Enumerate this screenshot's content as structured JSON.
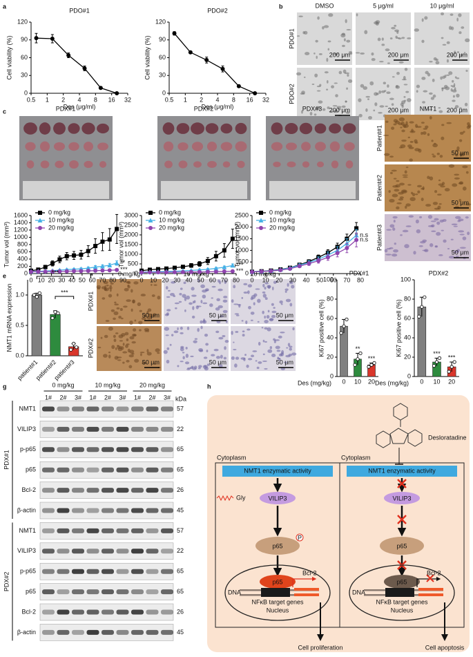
{
  "panel_labels": [
    "a",
    "b",
    "c",
    "d",
    "e",
    "f",
    "g",
    "h"
  ],
  "chart_data": [
    {
      "type": "line",
      "title": "PDO#1",
      "x_label": "Des (μg/ml)",
      "y_label": "Cell viability (%)",
      "xscale": "log",
      "x": [
        0.625,
        1.25,
        2.5,
        5,
        10,
        20
      ],
      "xlim": [
        0.5,
        32
      ],
      "xticks": [
        0.5,
        1,
        2,
        4,
        8,
        16,
        32
      ],
      "ylim": [
        0,
        120
      ],
      "yticks": [
        0,
        30,
        60,
        90,
        120
      ],
      "series": [
        {
          "color": "#000000",
          "marker": "circle",
          "values": [
            93,
            92,
            64,
            42,
            9,
            0
          ],
          "errors": [
            8,
            7,
            4,
            4,
            1,
            0
          ]
        }
      ]
    },
    {
      "type": "line",
      "title": "PDO#2",
      "x_label": "Des (μg/ml)",
      "y_label": "Cell viability (%)",
      "xscale": "log",
      "x": [
        0.625,
        1.25,
        2.5,
        5,
        10,
        20
      ],
      "xlim": [
        0.5,
        32
      ],
      "xticks": [
        0.5,
        1,
        2,
        4,
        8,
        16,
        32
      ],
      "ylim": [
        0,
        120
      ],
      "yticks": [
        0,
        30,
        60,
        90,
        120
      ],
      "series": [
        {
          "color": "#000000",
          "marker": "circle",
          "values": [
            101,
            69,
            56,
            41,
            12,
            0
          ],
          "errors": [
            3,
            1,
            5,
            5,
            1,
            0
          ]
        }
      ]
    },
    {
      "type": "line",
      "title": "PDX#1",
      "y_label": "Tumor vol (mm³)",
      "legend": "upper left",
      "x": [
        0,
        7,
        14,
        21,
        28,
        35,
        42,
        49,
        56,
        63,
        70,
        77,
        84
      ],
      "xlim": [
        0,
        90
      ],
      "xticks": [
        0,
        10,
        20,
        30,
        40,
        50,
        60,
        70,
        80,
        90
      ],
      "ylim": [
        0,
        1600
      ],
      "yticks": [
        0,
        200,
        400,
        600,
        800,
        1000,
        1200,
        1400,
        1600
      ],
      "series": [
        {
          "name": "0 mg/kg",
          "color": "#000000",
          "marker": "square",
          "values": [
            80,
            110,
            180,
            280,
            390,
            480,
            500,
            520,
            620,
            760,
            880,
            940,
            1230
          ],
          "errors": [
            20,
            30,
            50,
            70,
            90,
            100,
            110,
            120,
            150,
            200,
            250,
            300,
            400
          ]
        },
        {
          "name": "10 mg/kg",
          "color": "#45b0e5",
          "marker": "triangle",
          "annotation": "**",
          "values": [
            60,
            62,
            70,
            80,
            95,
            110,
            120,
            130,
            150,
            180,
            200,
            230,
            290
          ],
          "errors": [
            10,
            10,
            15,
            15,
            20,
            20,
            25,
            25,
            30,
            40,
            40,
            50,
            60
          ]
        },
        {
          "name": "20 mg/kg",
          "color": "#8e44ad",
          "marker": "circle",
          "annotation": "***",
          "values": [
            50,
            52,
            55,
            58,
            60,
            65,
            68,
            70,
            75,
            80,
            85,
            90,
            100
          ],
          "errors": [
            10,
            10,
            10,
            10,
            12,
            12,
            12,
            14,
            14,
            15,
            15,
            18,
            20
          ]
        }
      ]
    },
    {
      "type": "line",
      "title": "PDX#2",
      "y_label": "Tumor vol (mm³)",
      "legend": "upper left",
      "x": [
        0,
        7,
        14,
        21,
        28,
        35,
        42,
        49,
        56,
        63,
        70,
        77
      ],
      "xlim": [
        0,
        80
      ],
      "xticks": [
        0,
        10,
        20,
        30,
        40,
        50,
        60,
        70,
        80
      ],
      "ylim": [
        0,
        3000
      ],
      "yticks": [
        0,
        500,
        1000,
        1500,
        2000,
        2500,
        3000
      ],
      "series": [
        {
          "name": "0 mg/kg",
          "color": "#000000",
          "marker": "square",
          "values": [
            150,
            200,
            230,
            260,
            300,
            350,
            420,
            500,
            650,
            900,
            1200,
            1800
          ],
          "errors": [
            30,
            40,
            50,
            60,
            70,
            80,
            100,
            120,
            180,
            250,
            350,
            500
          ]
        },
        {
          "name": "10 mg/kg",
          "color": "#45b0e5",
          "marker": "triangle",
          "annotation": "***",
          "values": [
            80,
            90,
            100,
            110,
            120,
            140,
            160,
            190,
            220,
            270,
            330,
            420
          ],
          "errors": [
            15,
            15,
            20,
            20,
            25,
            25,
            30,
            35,
            40,
            50,
            60,
            80
          ]
        },
        {
          "name": "20 mg/kg",
          "color": "#8e44ad",
          "marker": "circle",
          "annotation": "***",
          "values": [
            60,
            62,
            65,
            68,
            70,
            75,
            80,
            85,
            90,
            100,
            110,
            120
          ],
          "errors": [
            10,
            10,
            10,
            12,
            12,
            12,
            15,
            15,
            15,
            20,
            20,
            25
          ]
        }
      ]
    },
    {
      "type": "line",
      "title": "PDX#3",
      "y_label": "Tumor vol (mm³)",
      "legend": "upper left",
      "x": [
        0,
        7,
        14,
        21,
        28,
        35,
        42,
        49,
        56,
        63,
        70,
        77
      ],
      "xlim": [
        0,
        80
      ],
      "xticks": [
        0,
        10,
        20,
        30,
        40,
        50,
        60,
        70,
        80
      ],
      "ylim": [
        0,
        2500
      ],
      "yticks": [
        0,
        500,
        1000,
        1500,
        2000,
        2500
      ],
      "series": [
        {
          "name": "0 mg/kg",
          "color": "#000000",
          "marker": "square",
          "values": [
            80,
            100,
            130,
            180,
            250,
            380,
            520,
            700,
            900,
            1150,
            1500,
            1950
          ],
          "errors": [
            15,
            20,
            25,
            30,
            40,
            60,
            80,
            100,
            130,
            160,
            200,
            250
          ]
        },
        {
          "name": "10 mg/kg",
          "color": "#45b0e5",
          "marker": "triangle",
          "annotation": "n.s",
          "values": [
            80,
            95,
            120,
            170,
            240,
            360,
            480,
            620,
            800,
            1000,
            1300,
            1650
          ],
          "errors": [
            15,
            20,
            25,
            30,
            40,
            60,
            80,
            100,
            130,
            160,
            200,
            250
          ]
        },
        {
          "name": "20 mg/kg",
          "color": "#8e44ad",
          "marker": "circle",
          "annotation": "n.s",
          "values": [
            70,
            90,
            110,
            150,
            210,
            320,
            430,
            550,
            700,
            880,
            1100,
            1450
          ],
          "errors": [
            15,
            20,
            25,
            30,
            40,
            60,
            80,
            100,
            130,
            160,
            200,
            300
          ]
        }
      ]
    },
    {
      "type": "bar",
      "y_label": "NMT1 mRNA expression",
      "categories": [
        "patient#1",
        "patient#2",
        "patient#3"
      ],
      "values": [
        1.0,
        0.68,
        0.15
      ],
      "errors": [
        0.03,
        0.06,
        0.05
      ],
      "colors": [
        "#808080",
        "#2e8b3e",
        "#d9362b"
      ],
      "replicates": [
        [
          1.0,
          0.97,
          1.03
        ],
        [
          0.62,
          0.72,
          0.7
        ],
        [
          0.1,
          0.2,
          0.14
        ]
      ],
      "ylim": [
        0,
        1.25
      ],
      "yticks": [
        {
          "value": 0,
          "label": "0.0"
        },
        {
          "value": 0.5,
          "label": "0.5"
        },
        {
          "value": 1,
          "label": "1.0"
        }
      ],
      "significance": [
        "***",
        "***"
      ]
    },
    {
      "type": "bar",
      "title": "PDX#1",
      "y_label": "Ki67 positive cell (%)",
      "x_label": "Des (mg/kg)",
      "categories": [
        "0",
        "10",
        "20"
      ],
      "values": [
        52,
        18,
        12
      ],
      "errors": [
        7,
        6,
        2
      ],
      "colors": [
        "#808080",
        "#2e8b3e",
        "#d9362b"
      ],
      "replicates": [
        [
          45,
          52,
          59
        ],
        [
          12,
          18,
          24
        ],
        [
          10,
          12,
          14
        ]
      ],
      "ylim": [
        0,
        100
      ],
      "yticks": [
        0,
        20,
        40,
        60,
        80,
        100
      ],
      "significance": [
        null,
        "**",
        "***"
      ]
    },
    {
      "type": "bar",
      "title": "PDX#2",
      "y_label": "Ki67 positive cell (%)",
      "x_label": "Des (mg/kg)",
      "categories": [
        "0",
        "10",
        "20"
      ],
      "values": [
        72,
        15,
        10
      ],
      "errors": [
        10,
        4,
        5
      ],
      "colors": [
        "#808080",
        "#2e8b3e",
        "#d9362b"
      ],
      "replicates": [
        [
          62,
          72,
          82
        ],
        [
          11,
          15,
          19
        ],
        [
          5,
          10,
          15
        ]
      ],
      "ylim": [
        0,
        100
      ],
      "yticks": [
        0,
        20,
        40,
        60,
        80,
        100
      ],
      "significance": [
        null,
        "***",
        "***"
      ]
    }
  ],
  "micrographs_b": {
    "columns": [
      "DMSO",
      "5 μg/ml",
      "10 μg/ml"
    ],
    "rows": [
      "PDO#1",
      "PDO#2"
    ],
    "scale_bar": "200 μm"
  },
  "ihc_d": {
    "title": "NMT1",
    "rows": [
      "Patient#1",
      "Patient#2",
      "Patient#3"
    ],
    "scale_bar": "50 μm"
  },
  "ihc_f": {
    "columns": [
      "0 mg/kg",
      "10 mg/kg",
      "20 mg/kg"
    ],
    "rows": [
      "PDX#1",
      "PDX#2"
    ],
    "scale_bar": "50 μm"
  },
  "western_blot": {
    "doses": [
      "0 mg/kg",
      "10 mg/kg",
      "20 mg/kg"
    ],
    "lanes": [
      "1#",
      "2#",
      "3#",
      "1#",
      "2#",
      "3#",
      "1#",
      "2#",
      "3#"
    ],
    "unit": "kDa",
    "groups": [
      {
        "name": "PDX#1",
        "proteins": [
          {
            "name": "NMT1",
            "kda": 57
          },
          {
            "name": "VILIP3",
            "kda": 22
          },
          {
            "name": "p-p65",
            "kda": 65
          },
          {
            "name": "p65",
            "kda": 65
          },
          {
            "name": "Bcl-2",
            "kda": 26
          },
          {
            "name": "β-actin",
            "kda": 45
          }
        ]
      },
      {
        "name": "PDX#2",
        "proteins": [
          {
            "name": "NMT1",
            "kda": 57
          },
          {
            "name": "VILIP3",
            "kda": 22
          },
          {
            "name": "p-p65",
            "kda": 65
          },
          {
            "name": "p65",
            "kda": 65
          },
          {
            "name": "Bcl-2",
            "kda": 26
          },
          {
            "name": "β-actin",
            "kda": 45
          }
        ]
      }
    ]
  },
  "diagram": {
    "drug": "Desloratadine",
    "left": {
      "cytoplasm": "Cytoplasm",
      "enzyme": "NMT1 enzymatic activity",
      "gly": "Gly",
      "vilip3": "VILIP3",
      "p65": "p65",
      "phospho": "P",
      "nuclear_p65": "p65",
      "gene": "Bcl-2",
      "dna": "DNA",
      "target_genes": "NFκB target genes",
      "nucleus": "Nucleus",
      "outcome": "Cell proliferation"
    },
    "right": {
      "cytoplasm": "Cytoplasm",
      "enzyme": "NMT1 enzymatic activity",
      "vilip3": "VILIP3",
      "p65": "p65",
      "nuclear_p65": "p65",
      "gene": "Bcl-2",
      "dna": "DNA",
      "target_genes": "NFκB target genes",
      "nucleus": "Nucleus",
      "outcome": "Cell apoptosis"
    }
  }
}
